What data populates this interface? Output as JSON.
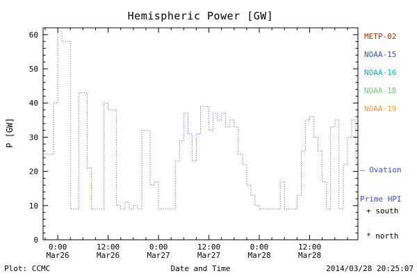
{
  "title": "Hemispheric Power [GW]",
  "y_axis_label": "P [GW]",
  "x_axis_label": "Date and Time",
  "footer": {
    "left": "Plot: CCMC",
    "right": "2014/03/28 20:25:07"
  },
  "legend": {
    "satellites": [
      {
        "label": "METP-02",
        "color": "#993300"
      },
      {
        "label": "NOAA-15",
        "color": "#3355bb"
      },
      {
        "label": "NOAA-16",
        "color": "#00b8c8"
      },
      {
        "label": "NOAA-18",
        "color": "#77cc77"
      },
      {
        "label": "NOAA-19",
        "color": "#ff9933"
      }
    ],
    "annotation": {
      "line1": "– Ovation",
      "line2": "Prime HPI",
      "color": "#3355bb"
    },
    "markers": [
      {
        "symbol": "+",
        "label": "+ south"
      },
      {
        "symbol": "*",
        "label": "* north"
      }
    ]
  },
  "chart_data": {
    "type": "line",
    "title": "Hemispheric Power [GW]",
    "xlabel": "Date and Time",
    "ylabel": "P [GW]",
    "ylim": [
      0,
      62
    ],
    "xlim": [
      -3.5,
      71.5
    ],
    "x_unit": "hours since Mar26 00:00",
    "y_ticks": [
      0,
      10,
      20,
      30,
      40,
      50,
      60
    ],
    "x_ticks": [
      {
        "hour": 0,
        "time": "0:00",
        "date": "Mar26"
      },
      {
        "hour": 12,
        "time": "12:00",
        "date": "Mar26"
      },
      {
        "hour": 24,
        "time": "0:00",
        "date": "Mar27"
      },
      {
        "hour": 36,
        "time": "12:00",
        "date": "Mar27"
      },
      {
        "hour": 48,
        "time": "0:00",
        "date": "Mar28"
      },
      {
        "hour": 60,
        "time": "12:00",
        "date": "Mar28"
      }
    ],
    "series": [
      {
        "name": "Ovation Prime HPI",
        "color": "#3355bb",
        "line_style": "dotted",
        "interpolation": "step",
        "x_hours": [
          -3,
          -2,
          -1,
          0,
          1,
          2,
          3,
          4,
          5,
          6,
          7,
          8,
          9,
          10,
          11,
          12,
          13,
          14,
          15,
          16,
          17,
          18,
          19,
          20,
          21,
          22,
          23,
          24,
          25,
          26,
          27,
          28,
          29,
          30,
          31,
          32,
          33,
          34,
          35,
          36,
          37,
          38,
          39,
          40,
          41,
          42,
          43,
          44,
          45,
          46,
          47,
          48,
          49,
          50,
          51,
          52,
          53,
          54,
          55,
          56,
          57,
          58,
          59,
          60,
          61,
          62,
          63,
          64,
          65,
          66,
          67,
          68,
          69,
          70,
          71
        ],
        "y_gw": [
          25,
          25,
          40,
          61,
          58,
          58,
          9,
          9,
          43,
          43,
          21,
          9,
          9,
          9,
          40,
          38,
          38,
          10,
          9,
          11,
          9,
          10,
          9,
          32,
          32,
          16,
          17,
          9,
          9,
          9,
          9,
          23,
          29,
          37,
          31,
          23,
          31,
          39,
          39,
          32,
          37,
          35,
          37,
          33,
          35,
          33,
          25,
          22,
          16,
          13,
          10,
          9,
          9,
          9,
          9,
          9,
          17,
          9,
          9,
          9,
          13,
          26,
          35,
          36,
          30,
          26,
          17,
          9,
          33,
          35,
          9,
          22,
          30,
          35,
          22
        ]
      }
    ]
  }
}
